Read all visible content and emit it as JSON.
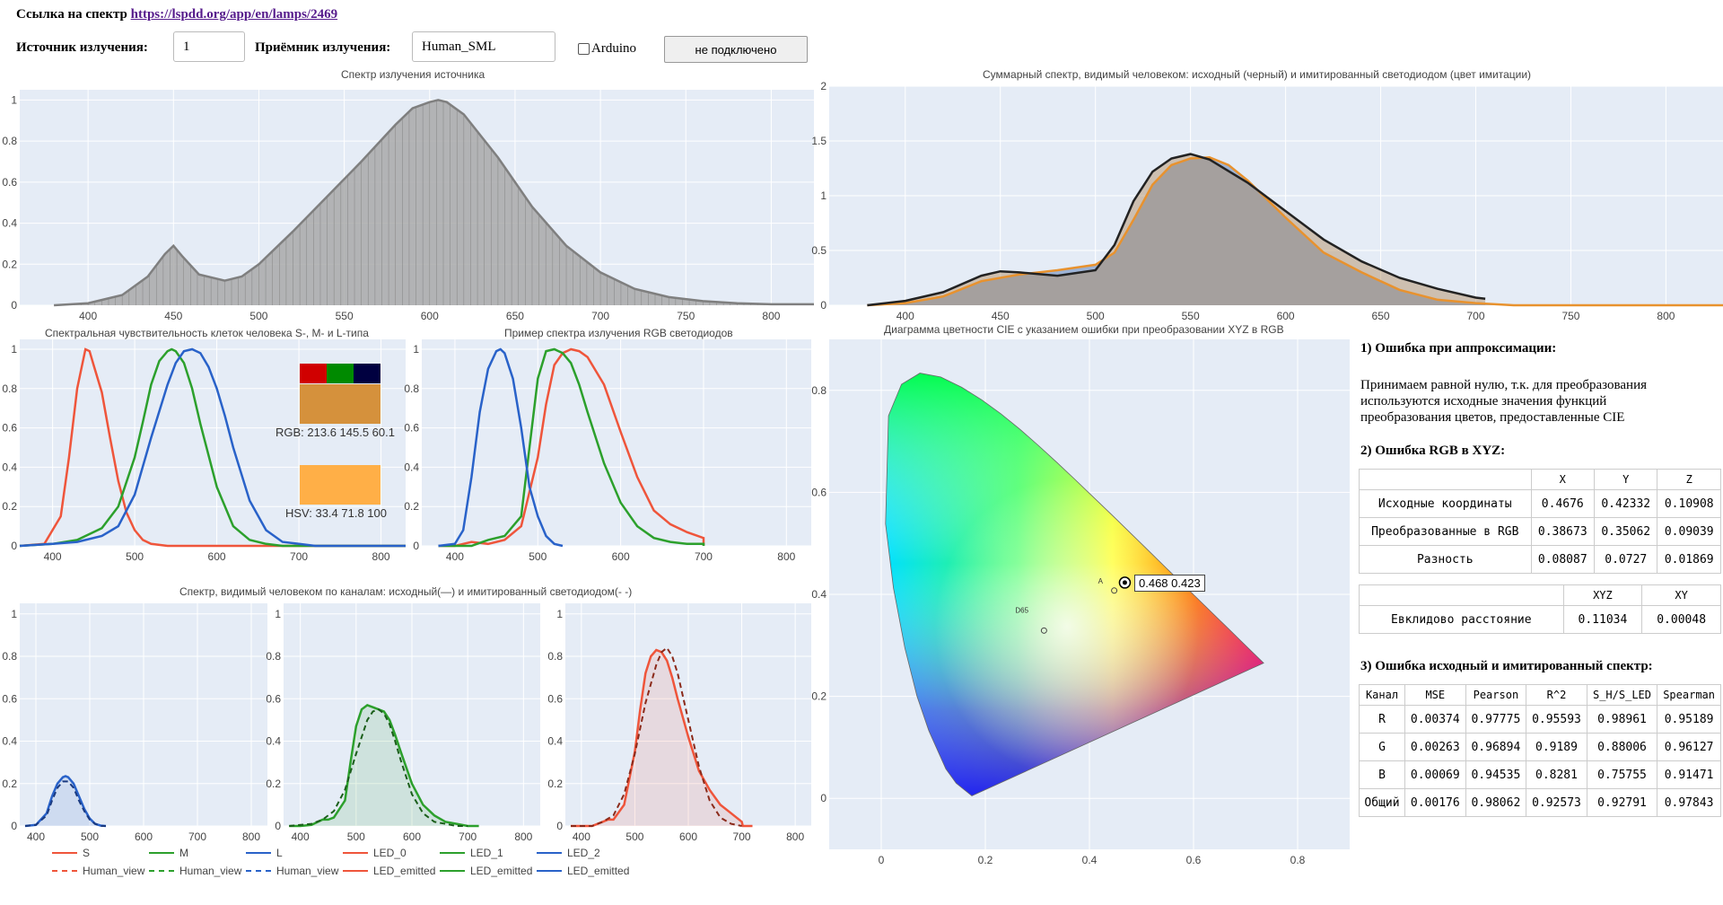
{
  "header": {
    "link_label": "Ссылка на спектр",
    "link_url": "https://lspdd.org/app/en/lamps/2469",
    "source_label": "Источник излучения:",
    "source_value": "1",
    "receiver_label": "Приёмник излучения:",
    "receiver_value": "Human_SML",
    "arduino_label": "Arduino",
    "connect_button": "не подключено"
  },
  "colors": {
    "plot_bg": "#e5ecf6",
    "gray_fill": "#a9a9a9",
    "gray_line": "#7f7f7f",
    "blue": "#2962c9",
    "green": "#2ca02c",
    "red": "#ef553b",
    "orange": "#e8922e",
    "blue_area": "#9db3d5",
    "dark": "#222222"
  },
  "chart_data": [
    {
      "id": "source",
      "type": "area",
      "title": "Спектр излучения источника",
      "xlim": [
        360,
        825
      ],
      "ylim": [
        0,
        1.05
      ],
      "xticks": [
        400,
        450,
        500,
        550,
        600,
        650,
        700,
        750,
        800
      ],
      "yticks": [
        0,
        0.2,
        0.4,
        0.6,
        0.8,
        1
      ],
      "series": [
        {
          "x": [
            380,
            400,
            420,
            435,
            445,
            450,
            455,
            465,
            480,
            490,
            500,
            520,
            540,
            560,
            580,
            590,
            600,
            605,
            610,
            620,
            640,
            660,
            680,
            700,
            720,
            740,
            760,
            780,
            800,
            825
          ],
          "y": [
            0,
            0.01,
            0.05,
            0.14,
            0.25,
            0.29,
            0.24,
            0.15,
            0.12,
            0.14,
            0.2,
            0.36,
            0.53,
            0.7,
            0.88,
            0.96,
            0.99,
            1.0,
            0.99,
            0.93,
            0.72,
            0.48,
            0.29,
            0.16,
            0.08,
            0.04,
            0.02,
            0.01,
            0.005,
            0.005
          ]
        }
      ]
    },
    {
      "id": "sum",
      "type": "area",
      "title": "Суммарный спектр, видимый человеком: исходный (черный) и имитированный светодиодом (цвет имитации)",
      "xlim": [
        360,
        830
      ],
      "ylim": [
        0,
        2
      ],
      "xticks": [
        400,
        450,
        500,
        550,
        600,
        650,
        700,
        750,
        800
      ],
      "yticks": [
        0,
        0.5,
        1,
        1.5,
        2
      ],
      "series": [
        {
          "name": "original",
          "x": [
            380,
            400,
            420,
            440,
            450,
            460,
            480,
            500,
            510,
            520,
            530,
            540,
            550,
            560,
            580,
            600,
            620,
            640,
            660,
            680,
            700,
            705
          ],
          "y": [
            0,
            0.04,
            0.12,
            0.27,
            0.31,
            0.3,
            0.27,
            0.32,
            0.55,
            0.95,
            1.22,
            1.34,
            1.38,
            1.33,
            1.12,
            0.86,
            0.6,
            0.4,
            0.25,
            0.15,
            0.07,
            0.06
          ]
        },
        {
          "name": "led",
          "x": [
            380,
            400,
            420,
            440,
            460,
            480,
            500,
            510,
            520,
            530,
            540,
            550,
            560,
            570,
            580,
            600,
            620,
            640,
            660,
            680,
            700,
            720,
            760,
            800,
            830
          ],
          "y": [
            0,
            0.02,
            0.08,
            0.22,
            0.28,
            0.32,
            0.37,
            0.48,
            0.78,
            1.1,
            1.28,
            1.34,
            1.35,
            1.28,
            1.14,
            0.8,
            0.48,
            0.3,
            0.14,
            0.05,
            0.02,
            0,
            0,
            0,
            0
          ]
        }
      ]
    },
    {
      "id": "cone",
      "type": "line",
      "title": "Спектральная чувствительность клеток человека S-, M- и L-типа",
      "xlim": [
        360,
        830
      ],
      "ylim": [
        0,
        1.05
      ],
      "xticks": [
        400,
        500,
        600,
        700,
        800
      ],
      "yticks": [
        0,
        0.2,
        0.4,
        0.6,
        0.8,
        1
      ],
      "series": [
        {
          "name": "S",
          "x": [
            360,
            390,
            410,
            420,
            430,
            440,
            445,
            450,
            460,
            470,
            480,
            490,
            500,
            510,
            520,
            540,
            560,
            600,
            700,
            830
          ],
          "y": [
            0,
            0.01,
            0.15,
            0.45,
            0.8,
            1.0,
            0.99,
            0.92,
            0.78,
            0.55,
            0.33,
            0.17,
            0.08,
            0.03,
            0.01,
            0,
            0,
            0,
            0,
            0
          ]
        },
        {
          "name": "M",
          "x": [
            360,
            400,
            430,
            460,
            480,
            500,
            510,
            520,
            530,
            540,
            545,
            550,
            560,
            570,
            580,
            600,
            620,
            640,
            660,
            680,
            700,
            830
          ],
          "y": [
            0,
            0.01,
            0.03,
            0.09,
            0.2,
            0.45,
            0.63,
            0.82,
            0.94,
            0.99,
            1.0,
            0.99,
            0.93,
            0.8,
            0.62,
            0.3,
            0.1,
            0.03,
            0.01,
            0,
            0,
            0
          ]
        },
        {
          "name": "L",
          "x": [
            360,
            400,
            430,
            460,
            480,
            500,
            520,
            540,
            550,
            560,
            570,
            580,
            590,
            600,
            610,
            620,
            640,
            660,
            680,
            700,
            720,
            830
          ],
          "y": [
            0,
            0.01,
            0.02,
            0.05,
            0.1,
            0.26,
            0.55,
            0.82,
            0.93,
            0.99,
            1.0,
            0.98,
            0.91,
            0.8,
            0.66,
            0.5,
            0.23,
            0.08,
            0.02,
            0.01,
            0,
            0
          ]
        }
      ],
      "color_info": {
        "rgb_label": "RGB: 213.6 145.5 60.1",
        "hsv_label": "HSV: 33.4 71.8 100",
        "rgb_swatch": "#d5913c",
        "hsv_swatch": "#ffaf47",
        "channel_swatches": [
          "#d00000",
          "#008a00",
          "#000040"
        ]
      }
    },
    {
      "id": "rgb_led",
      "type": "line",
      "title": "Пример спектра излучения RGB светодиодов",
      "xlim": [
        360,
        830
      ],
      "ylim": [
        0,
        1.05
      ],
      "xticks": [
        400,
        500,
        600,
        700,
        800
      ],
      "yticks": [
        0,
        0.2,
        0.4,
        0.6,
        0.8,
        1
      ],
      "series": [
        {
          "name": "LED_0",
          "x": [
            380,
            400,
            420,
            440,
            450,
            460,
            480,
            500,
            510,
            520,
            530,
            540,
            550,
            560,
            580,
            600,
            620,
            640,
            660,
            680,
            700,
            700
          ],
          "y": [
            0,
            0,
            0.02,
            0.01,
            0.02,
            0.03,
            0.1,
            0.45,
            0.72,
            0.92,
            0.98,
            1.0,
            0.99,
            0.96,
            0.82,
            0.58,
            0.35,
            0.18,
            0.11,
            0.07,
            0.04,
            0
          ]
        },
        {
          "name": "LED_1",
          "x": [
            380,
            420,
            440,
            460,
            480,
            490,
            500,
            510,
            520,
            530,
            540,
            550,
            560,
            580,
            600,
            620,
            640,
            660,
            680,
            700,
            700
          ],
          "y": [
            0,
            0,
            0.03,
            0.05,
            0.15,
            0.5,
            0.85,
            0.99,
            1.0,
            0.98,
            0.93,
            0.82,
            0.68,
            0.42,
            0.22,
            0.1,
            0.04,
            0.02,
            0.01,
            0.01,
            0
          ]
        },
        {
          "name": "LED_2",
          "x": [
            380,
            400,
            410,
            420,
            430,
            440,
            450,
            455,
            460,
            470,
            480,
            490,
            500,
            510,
            520,
            530
          ],
          "y": [
            0,
            0.01,
            0.08,
            0.35,
            0.68,
            0.9,
            0.99,
            1.0,
            0.98,
            0.85,
            0.6,
            0.3,
            0.15,
            0.05,
            0.01,
            0
          ]
        }
      ]
    },
    {
      "id": "cie",
      "type": "scatter",
      "title": "Диаграмма цветности CIE с указанием ошибки при преобразовании XYZ в RGB",
      "xlim": [
        -0.1,
        0.9
      ],
      "ylim": [
        -0.1,
        0.9
      ],
      "xticks": [
        0,
        0.2,
        0.4,
        0.6,
        0.8
      ],
      "yticks": [
        0,
        0.2,
        0.4,
        0.6,
        0.8
      ],
      "points": [
        {
          "label": "A",
          "x": 0.4476,
          "y": 0.4074
        },
        {
          "label": "D65",
          "x": 0.3127,
          "y": 0.329
        },
        {
          "label": "0.468 0.423",
          "x": 0.468,
          "y": 0.423
        }
      ]
    },
    {
      "id": "ch_B",
      "type": "line",
      "title": "Спектр, видимый человеком по каналам: исходный(—) и имитированный светодиодом(- -)",
      "xlim": [
        370,
        830
      ],
      "ylim": [
        0,
        1.05
      ],
      "xticks": [
        400,
        500,
        600,
        700,
        800
      ],
      "yticks": [
        0,
        0.2,
        0.4,
        0.6,
        0.8,
        1
      ],
      "series": [
        {
          "name": "LED_emitted",
          "x": [
            380,
            400,
            420,
            430,
            440,
            450,
            455,
            460,
            470,
            480,
            490,
            500,
            510,
            520,
            530
          ],
          "y": [
            0,
            0.005,
            0.06,
            0.14,
            0.2,
            0.23,
            0.235,
            0.23,
            0.2,
            0.14,
            0.08,
            0.035,
            0.01,
            0.002,
            0
          ]
        },
        {
          "name": "Human_view",
          "x": [
            380,
            400,
            420,
            430,
            440,
            450,
            460,
            470,
            480,
            490,
            500,
            510,
            520,
            530
          ],
          "y": [
            0,
            0.005,
            0.05,
            0.12,
            0.18,
            0.21,
            0.21,
            0.18,
            0.12,
            0.07,
            0.03,
            0.01,
            0,
            0
          ]
        }
      ]
    },
    {
      "id": "ch_G",
      "type": "line",
      "xlim": [
        370,
        830
      ],
      "ylim": [
        0,
        1.05
      ],
      "xticks": [
        400,
        500,
        600,
        700,
        800
      ],
      "yticks": [
        0,
        0.2,
        0.4,
        0.6,
        0.8,
        1
      ],
      "series": [
        {
          "name": "LED_emitted",
          "x": [
            380,
            400,
            420,
            440,
            450,
            460,
            480,
            490,
            500,
            510,
            520,
            530,
            540,
            550,
            560,
            570,
            580,
            600,
            620,
            640,
            660,
            680,
            700,
            720
          ],
          "y": [
            0,
            0,
            0.005,
            0.03,
            0.03,
            0.04,
            0.12,
            0.3,
            0.47,
            0.55,
            0.57,
            0.56,
            0.55,
            0.54,
            0.5,
            0.43,
            0.35,
            0.2,
            0.1,
            0.05,
            0.02,
            0.01,
            0,
            0
          ]
        },
        {
          "name": "Human_view",
          "x": [
            380,
            400,
            420,
            440,
            460,
            480,
            500,
            520,
            530,
            540,
            550,
            560,
            570,
            580,
            600,
            620,
            640,
            660,
            680,
            700
          ],
          "y": [
            0,
            0.005,
            0.01,
            0.03,
            0.07,
            0.17,
            0.34,
            0.5,
            0.54,
            0.55,
            0.53,
            0.48,
            0.4,
            0.31,
            0.15,
            0.06,
            0.02,
            0.01,
            0,
            0
          ]
        }
      ]
    },
    {
      "id": "ch_R",
      "type": "line",
      "xlim": [
        370,
        830
      ],
      "ylim": [
        0,
        1.05
      ],
      "xticks": [
        400,
        500,
        600,
        700,
        800
      ],
      "yticks": [
        0,
        0.2,
        0.4,
        0.6,
        0.8,
        1
      ],
      "series": [
        {
          "name": "LED_emitted",
          "x": [
            380,
            420,
            440,
            450,
            460,
            480,
            500,
            510,
            520,
            530,
            540,
            550,
            560,
            570,
            580,
            600,
            620,
            640,
            660,
            680,
            700,
            702,
            720
          ],
          "y": [
            0,
            0,
            0.02,
            0.03,
            0.03,
            0.1,
            0.35,
            0.55,
            0.72,
            0.8,
            0.83,
            0.82,
            0.78,
            0.7,
            0.6,
            0.42,
            0.26,
            0.17,
            0.1,
            0.06,
            0.02,
            0,
            0
          ]
        },
        {
          "name": "Human_view",
          "x": [
            380,
            420,
            440,
            460,
            480,
            500,
            520,
            540,
            550,
            560,
            570,
            580,
            600,
            620,
            640,
            660,
            680,
            700
          ],
          "y": [
            0,
            0,
            0.02,
            0.05,
            0.15,
            0.34,
            0.58,
            0.76,
            0.82,
            0.84,
            0.8,
            0.72,
            0.5,
            0.28,
            0.12,
            0.04,
            0.01,
            0
          ]
        }
      ]
    }
  ],
  "legend": [
    {
      "name": "S",
      "color": "#ef553b",
      "dash": false
    },
    {
      "name": "M",
      "color": "#2ca02c",
      "dash": false
    },
    {
      "name": "L",
      "color": "#2962c9",
      "dash": false
    },
    {
      "name": "LED_0",
      "color": "#ef553b",
      "dash": false
    },
    {
      "name": "LED_1",
      "color": "#2ca02c",
      "dash": false
    },
    {
      "name": "LED_2",
      "color": "#2962c9",
      "dash": false
    },
    {
      "name": "Human_view",
      "color": "#ef553b",
      "dash": true
    },
    {
      "name": "Human_view",
      "color": "#2ca02c",
      "dash": true
    },
    {
      "name": "Human_view",
      "color": "#2962c9",
      "dash": true
    },
    {
      "name": "LED_emitted",
      "color": "#ef553b",
      "dash": false
    },
    {
      "name": "LED_emitted",
      "color": "#2ca02c",
      "dash": false
    },
    {
      "name": "LED_emitted",
      "color": "#2962c9",
      "dash": false
    }
  ],
  "results": {
    "h1": "1) Ошибка при аппроксимации:",
    "p1": "Принимаем равной нулю, т.к. для преобразования используются исходные значения функций преобразования цветов, предоставленные CIE",
    "h2": "2) Ошибка RGB в XYZ:",
    "xyz_table": {
      "headers": [
        "",
        "X",
        "Y",
        "Z"
      ],
      "rows": [
        [
          "Исходные координаты",
          "0.4676",
          "0.42332",
          "0.10908"
        ],
        [
          "Преобразованные в RGB",
          "0.38673",
          "0.35062",
          "0.09039"
        ],
        [
          "Разность",
          "0.08087",
          "0.0727",
          "0.01869"
        ]
      ]
    },
    "dist_table": {
      "headers": [
        "",
        "XYZ",
        "XY"
      ],
      "rows": [
        [
          "Евклидово расстояние",
          "0.11034",
          "0.00048"
        ]
      ]
    },
    "h3": "3) Ошибка исходный и имитированный спектр:",
    "err_table": {
      "headers": [
        "Канал",
        "MSE",
        "Pearson",
        "R^2",
        "S_H/S_LED",
        "Spearman"
      ],
      "rows": [
        [
          "R",
          "0.00374",
          "0.97775",
          "0.95593",
          "0.98961",
          "0.95189"
        ],
        [
          "G",
          "0.00263",
          "0.96894",
          "0.9189",
          "0.88006",
          "0.96127"
        ],
        [
          "B",
          "0.00069",
          "0.94535",
          "0.8281",
          "0.75755",
          "0.91471"
        ],
        [
          "Общий",
          "0.00176",
          "0.98062",
          "0.92573",
          "0.92791",
          "0.97843"
        ]
      ]
    }
  }
}
